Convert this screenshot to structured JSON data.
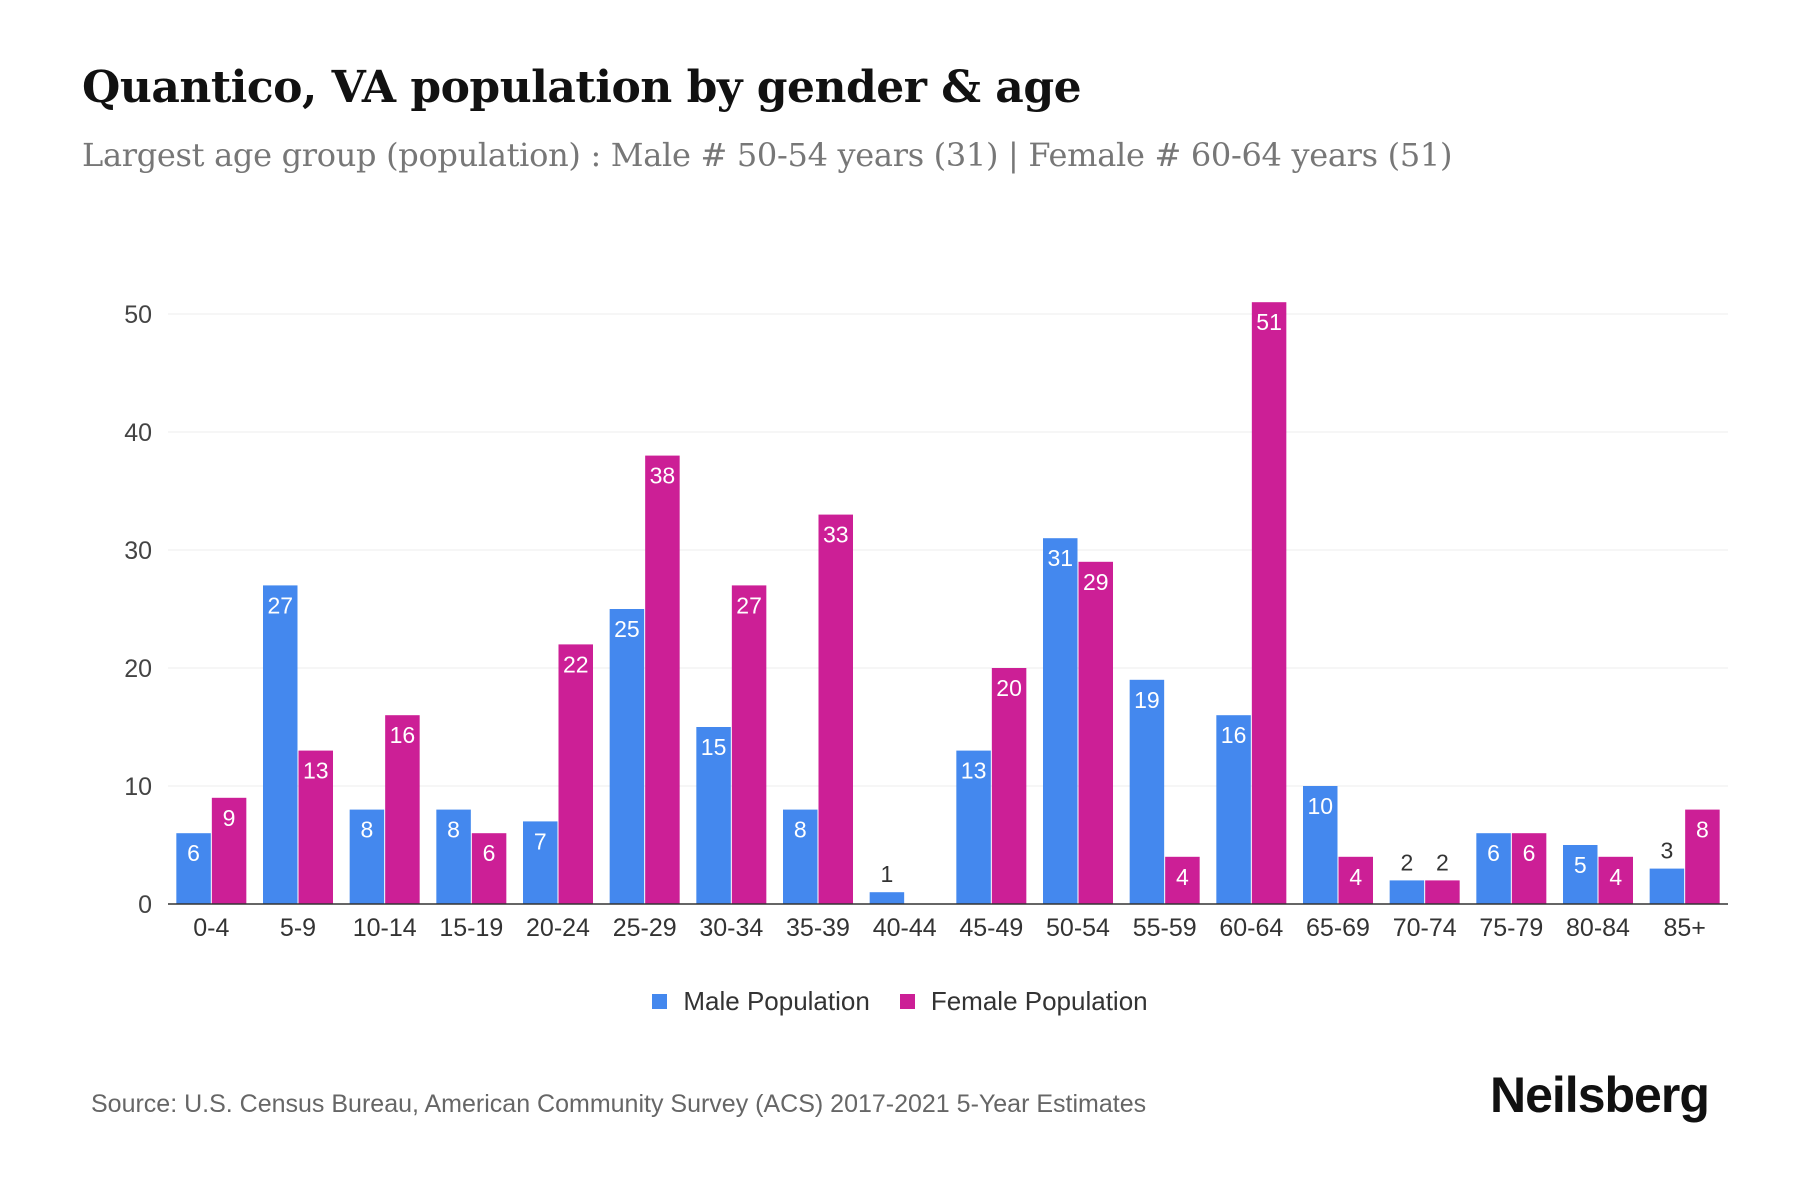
{
  "title": "Quantico, VA population by gender & age",
  "subtitle": "Largest age group (population) : Male # 50-54 years (31) | Female # 60-64 years (51)",
  "source": "Source: U.S. Census Bureau, American Community Survey (ACS) 2017-2021 5-Year Estimates",
  "logo": "Neilsberg",
  "colors": {
    "male": "#4488ee",
    "female": "#cc1f96"
  },
  "chart_data": {
    "type": "bar",
    "categories": [
      "0-4",
      "5-9",
      "10-14",
      "15-19",
      "20-24",
      "25-29",
      "30-34",
      "35-39",
      "40-44",
      "45-49",
      "50-54",
      "55-59",
      "60-64",
      "65-69",
      "70-74",
      "75-79",
      "80-84",
      "85+"
    ],
    "series": [
      {
        "name": "Male Population",
        "values": [
          6,
          27,
          8,
          8,
          7,
          25,
          15,
          8,
          1,
          13,
          31,
          19,
          16,
          10,
          2,
          6,
          5,
          3
        ]
      },
      {
        "name": "Female Population",
        "values": [
          9,
          13,
          16,
          6,
          22,
          38,
          27,
          33,
          0,
          20,
          29,
          4,
          51,
          4,
          2,
          6,
          4,
          8
        ]
      }
    ],
    "yticks": [
      0,
      10,
      20,
      30,
      40,
      50
    ],
    "ylim": [
      0,
      52
    ],
    "grid": true,
    "legend": "bottom"
  }
}
